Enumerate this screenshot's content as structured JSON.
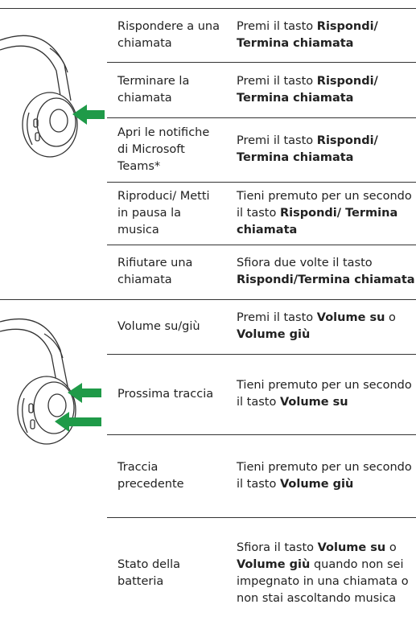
{
  "sections": [
    {
      "rows": [
        {
          "action": "Rispondere a una chiamata",
          "instruction": [
            {
              "text": "Premi il tasto ",
              "bold": false
            },
            {
              "text": "Rispondi/ Termina chiamata",
              "bold": true
            }
          ]
        },
        {
          "action": "Terminare la chiamata",
          "instruction": [
            {
              "text": "Premi il tasto ",
              "bold": false
            },
            {
              "text": "Rispondi/ Termina chiamata",
              "bold": true
            }
          ]
        },
        {
          "action": "Apri le notifiche di Microsoft Teams*",
          "instruction": [
            {
              "text": "Premi il tasto ",
              "bold": false
            },
            {
              "text": "Rispondi/ Termina chiamata",
              "bold": true
            }
          ]
        },
        {
          "action": "Riproduci/ Metti in pausa la musica",
          "instruction": [
            {
              "text": "Tieni premuto per un secondo il tasto ",
              "bold": false
            },
            {
              "text": "Rispondi/ Termina chiamata",
              "bold": true
            }
          ]
        },
        {
          "action": "Rifiutare una chiamata",
          "instruction": [
            {
              "text": "Sfiora due volte il tasto ",
              "bold": false
            },
            {
              "text": "Rispondi/Termina chiamata",
              "bold": true
            }
          ]
        }
      ]
    },
    {
      "rows": [
        {
          "action": "Volume su/giù",
          "instruction": [
            {
              "text": "Premi il tasto ",
              "bold": false
            },
            {
              "text": "Volume su",
              "bold": true
            },
            {
              "text": " o ",
              "bold": false
            },
            {
              "text": "Volume giù",
              "bold": true
            }
          ]
        },
        {
          "action": "Prossima traccia",
          "instruction": [
            {
              "text": "Tieni premuto per un secondo il tasto ",
              "bold": false
            },
            {
              "text": "Volume su",
              "bold": true
            }
          ]
        },
        {
          "action": "Traccia precedente",
          "instruction": [
            {
              "text": "Tieni premuto per un secondo il tasto ",
              "bold": false
            },
            {
              "text": "Volume giù",
              "bold": true
            }
          ]
        },
        {
          "action": "Stato della batteria",
          "instruction": [
            {
              "text": "Sfiora il tasto ",
              "bold": false
            },
            {
              "text": "Volume su",
              "bold": true
            },
            {
              "text": " o ",
              "bold": false
            },
            {
              "text": "Volume giù",
              "bold": true
            },
            {
              "text": " quando non sei impegnato in una chiamata o non stai ascoltando musica",
              "bold": false
            }
          ]
        }
      ]
    }
  ]
}
